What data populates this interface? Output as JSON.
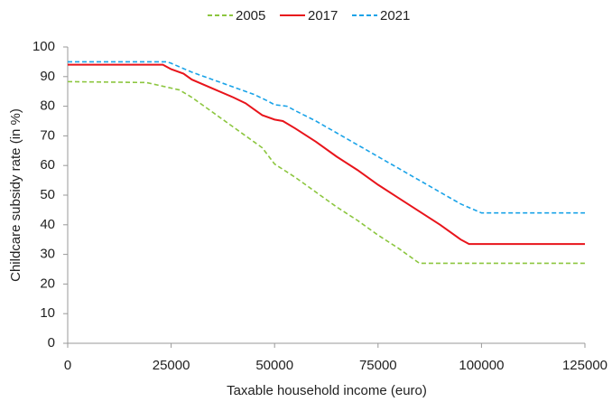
{
  "chart_data": {
    "type": "line",
    "x_label": "Taxable household income (euro)",
    "y_label": "Childcare subsidy rate (in %)",
    "xlim": [
      0,
      125000
    ],
    "xticks": [
      0,
      25000,
      50000,
      75000,
      100000,
      125000
    ],
    "ylim": [
      0,
      100
    ],
    "yticks": [
      0,
      10,
      20,
      30,
      40,
      50,
      60,
      70,
      80,
      90,
      100
    ],
    "grid": false,
    "legend": "top",
    "series": [
      {
        "name": "2005",
        "color": "#8cc63f",
        "dash": "dashed",
        "x": [
          0,
          19000,
          27000,
          30000,
          35000,
          40000,
          45000,
          47000,
          50000,
          55000,
          60000,
          65000,
          70000,
          75000,
          80000,
          85000,
          86000,
          125000
        ],
        "values": [
          88.3,
          88,
          85.5,
          83,
          78,
          73,
          68,
          66,
          60.5,
          56,
          51,
          46,
          41.5,
          36.5,
          32,
          27,
          27,
          27
        ]
      },
      {
        "name": "2017",
        "color": "#e8141b",
        "dash": "solid",
        "x": [
          0,
          23000,
          25000,
          28000,
          30000,
          35000,
          40000,
          43000,
          45000,
          47000,
          50000,
          52000,
          55000,
          60000,
          65000,
          70000,
          75000,
          80000,
          85000,
          90000,
          95000,
          97000,
          125000
        ],
        "values": [
          94,
          94,
          92.5,
          91,
          89,
          86,
          83,
          81,
          79,
          77,
          75.5,
          75,
          72.5,
          68,
          63,
          58.5,
          53.5,
          49,
          44.5,
          40,
          35,
          33.5,
          33.5
        ]
      },
      {
        "name": "2021",
        "color": "#1aa3e8",
        "dash": "dashed",
        "x": [
          0,
          24000,
          25000,
          30000,
          35000,
          40000,
          45000,
          48000,
          50000,
          53000,
          55000,
          60000,
          65000,
          70000,
          75000,
          80000,
          85000,
          90000,
          95000,
          100000,
          125000
        ],
        "values": [
          95,
          95,
          94.5,
          91.5,
          89,
          86.5,
          84,
          82,
          80.5,
          80,
          78.5,
          75,
          71,
          67,
          63,
          59,
          55,
          51,
          47,
          44,
          44
        ]
      }
    ]
  }
}
